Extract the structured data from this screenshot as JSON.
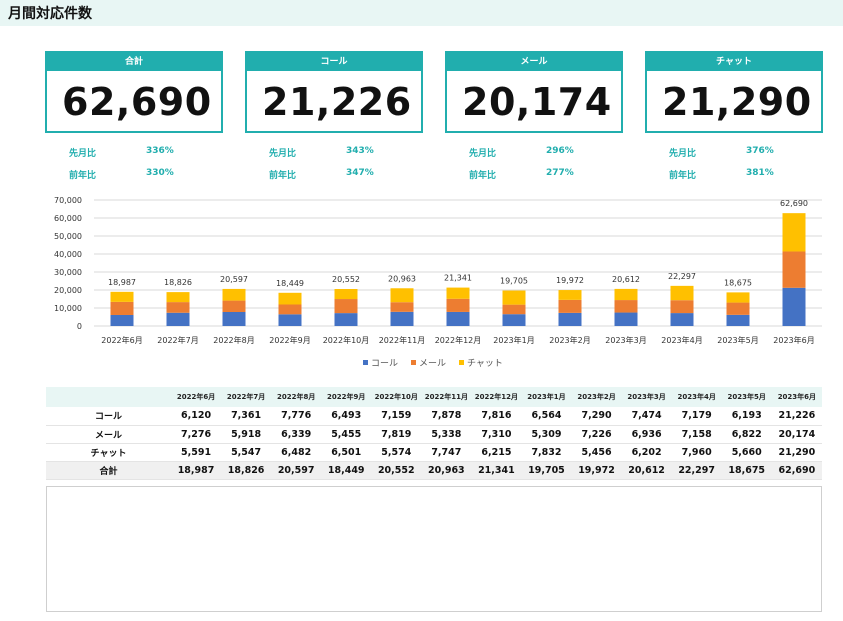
{
  "header": {
    "title": "月間対応件数"
  },
  "kpis": [
    {
      "label": "合計",
      "value": "62,690",
      "mom_label": "先月比",
      "mom": "336%",
      "yoy_label": "前年比",
      "yoy": "330%"
    },
    {
      "label": "コール",
      "value": "21,226",
      "mom_label": "先月比",
      "mom": "343%",
      "yoy_label": "前年比",
      "yoy": "347%"
    },
    {
      "label": "メール",
      "value": "20,174",
      "mom_label": "先月比",
      "mom": "296%",
      "yoy_label": "前年比",
      "yoy": "277%"
    },
    {
      "label": "チャット",
      "value": "21,290",
      "mom_label": "先月比",
      "mom": "376%",
      "yoy_label": "前年比",
      "yoy": "381%"
    }
  ],
  "chart_data": {
    "type": "bar",
    "stacked": true,
    "categories": [
      "2022年6月",
      "2022年7月",
      "2022年8月",
      "2022年9月",
      "2022年10月",
      "2022年11月",
      "2022年12月",
      "2023年1月",
      "2023年2月",
      "2023年3月",
      "2023年4月",
      "2023年5月",
      "2023年6月"
    ],
    "series": [
      {
        "name": "コール",
        "color": "#4472c4",
        "values": [
          6120,
          7361,
          7776,
          6493,
          7159,
          7878,
          7816,
          6564,
          7290,
          7474,
          7179,
          6193,
          21226
        ]
      },
      {
        "name": "メール",
        "color": "#ed7d31",
        "values": [
          7276,
          5918,
          6339,
          5455,
          7819,
          5338,
          7310,
          5309,
          7226,
          6936,
          7158,
          6822,
          20174
        ]
      },
      {
        "name": "チャット",
        "color": "#ffc000",
        "values": [
          5591,
          5547,
          6482,
          6501,
          5574,
          7747,
          6215,
          7832,
          5456,
          6202,
          7960,
          5660,
          21290
        ]
      }
    ],
    "totals": [
      18987,
      18826,
      20597,
      18449,
      20552,
      20963,
      21341,
      19705,
      19972,
      20612,
      22297,
      18675,
      62690
    ],
    "total_labels": [
      "18,987",
      "18,826",
      "20,597",
      "18,449",
      "20,552",
      "20,963",
      "21,341",
      "19,705",
      "19,972",
      "20,612",
      "22,297",
      "18,675",
      "62,690"
    ],
    "ylim": [
      0,
      70000
    ],
    "yticks": [
      0,
      10000,
      20000,
      30000,
      40000,
      50000,
      60000,
      70000
    ],
    "ytick_labels": [
      "0",
      "10,000",
      "20,000",
      "30,000",
      "40,000",
      "50,000",
      "60,000",
      "70,000"
    ],
    "grid": true,
    "legend": "bottom"
  },
  "table": {
    "headers": [
      "",
      "2022年6月",
      "2022年7月",
      "2022年8月",
      "2022年9月",
      "2022年10月",
      "2022年11月",
      "2022年12月",
      "2023年1月",
      "2023年2月",
      "2023年3月",
      "2023年4月",
      "2023年5月",
      "2023年6月"
    ],
    "rows": [
      {
        "label": "コール",
        "cells": [
          "6,120",
          "7,361",
          "7,776",
          "6,493",
          "7,159",
          "7,878",
          "7,816",
          "6,564",
          "7,290",
          "7,474",
          "7,179",
          "6,193",
          "21,226"
        ]
      },
      {
        "label": "メール",
        "cells": [
          "7,276",
          "5,918",
          "6,339",
          "5,455",
          "7,819",
          "5,338",
          "7,310",
          "5,309",
          "7,226",
          "6,936",
          "7,158",
          "6,822",
          "20,174"
        ]
      },
      {
        "label": "チャット",
        "cells": [
          "5,591",
          "5,547",
          "6,482",
          "6,501",
          "5,574",
          "7,747",
          "6,215",
          "7,832",
          "5,456",
          "6,202",
          "7,960",
          "5,660",
          "21,290"
        ]
      },
      {
        "label": "合計",
        "cells": [
          "18,987",
          "18,826",
          "20,597",
          "18,449",
          "20,552",
          "20,963",
          "21,341",
          "19,705",
          "19,972",
          "20,612",
          "22,297",
          "18,675",
          "62,690"
        ]
      }
    ]
  }
}
